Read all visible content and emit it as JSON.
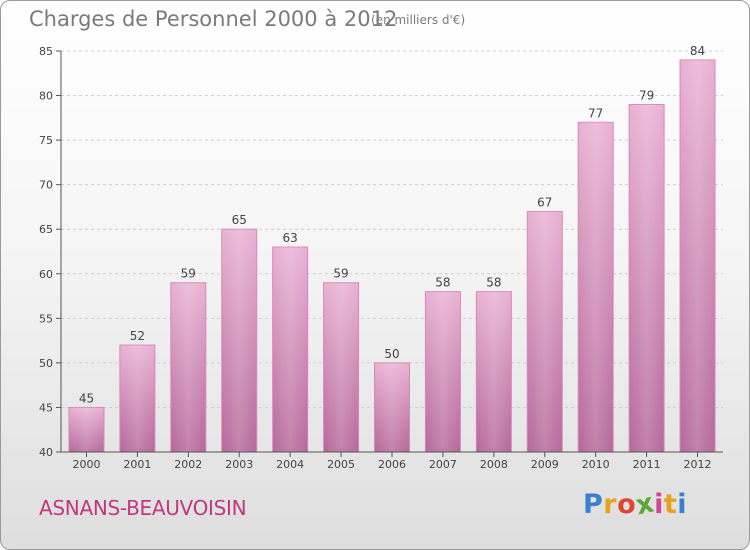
{
  "title": "Charges de Personnel 2000 à 2012",
  "unit_note": "(en milliers d'€)",
  "city": "ASNANS-BEAUVOISIN",
  "logo": {
    "letters": [
      "P",
      "r",
      "o",
      "x",
      "i",
      "t",
      "i"
    ],
    "colors": [
      "#3b7fd0",
      "#e8a21c",
      "#e0452f",
      "#5aa838",
      "#d64592",
      "#e8a21c",
      "#3b7fd0"
    ]
  },
  "colors": {
    "bar": "#c9679e",
    "bar_light": "#e9b1d3",
    "accent": "#c0397f"
  },
  "chart_data": {
    "type": "bar",
    "title": "Charges de Personnel 2000 à 2012",
    "subtitle": "(en milliers d'€)",
    "categories": [
      "2000",
      "2001",
      "2002",
      "2003",
      "2004",
      "2005",
      "2006",
      "2007",
      "2008",
      "2009",
      "2010",
      "2011",
      "2012"
    ],
    "values": [
      45,
      52,
      59,
      65,
      63,
      59,
      50,
      58,
      58,
      67,
      77,
      79,
      84
    ],
    "ylim": [
      40,
      85
    ],
    "yticks": [
      40,
      45,
      50,
      55,
      60,
      65,
      70,
      75,
      80,
      85
    ],
    "grid": true,
    "data_labels": true
  }
}
